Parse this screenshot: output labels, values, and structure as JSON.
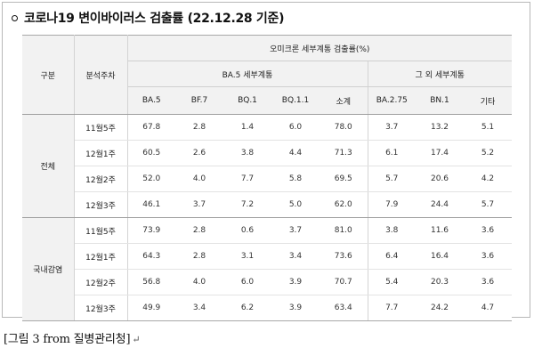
{
  "title": "코로나19 변이바이러스 검출률 (22.12.28 기준)",
  "table": {
    "col_group": "구분",
    "col_week": "분석주차",
    "super_header": "오미크론 세부계통 검출률(%)",
    "ba5_group": "BA.5 세부계통",
    "other_group": "그 외 세부계통",
    "columns": [
      "BA.5",
      "BF.7",
      "BQ.1",
      "BQ.1.1",
      "소계",
      "BA.2.75",
      "BN.1",
      "기타"
    ],
    "groups": [
      {
        "name": "전체",
        "rows": [
          {
            "week": "11월5주",
            "values": [
              "67.8",
              "2.8",
              "1.4",
              "6.0",
              "78.0",
              "3.7",
              "13.2",
              "5.1"
            ]
          },
          {
            "week": "12월1주",
            "values": [
              "60.5",
              "2.6",
              "3.8",
              "4.4",
              "71.3",
              "6.1",
              "17.4",
              "5.2"
            ]
          },
          {
            "week": "12월2주",
            "values": [
              "52.0",
              "4.0",
              "7.7",
              "5.8",
              "69.5",
              "5.7",
              "20.6",
              "4.2"
            ]
          },
          {
            "week": "12월3주",
            "values": [
              "46.1",
              "3.7",
              "7.2",
              "5.0",
              "62.0",
              "7.9",
              "24.4",
              "5.7"
            ]
          }
        ]
      },
      {
        "name": "국내감염",
        "rows": [
          {
            "week": "11월5주",
            "values": [
              "73.9",
              "2.8",
              "0.6",
              "3.7",
              "81.0",
              "3.8",
              "11.6",
              "3.6"
            ]
          },
          {
            "week": "12월1주",
            "values": [
              "64.3",
              "2.8",
              "3.1",
              "3.4",
              "73.6",
              "6.4",
              "16.4",
              "3.6"
            ]
          },
          {
            "week": "12월2주",
            "values": [
              "56.8",
              "4.0",
              "6.0",
              "3.9",
              "70.7",
              "5.4",
              "20.3",
              "3.6"
            ]
          },
          {
            "week": "12월3주",
            "values": [
              "49.9",
              "3.4",
              "6.2",
              "3.9",
              "63.4",
              "7.7",
              "24.2",
              "4.7"
            ]
          }
        ]
      }
    ]
  },
  "caption": "[그림 3 from 질병관리청]",
  "return_mark": "↵"
}
